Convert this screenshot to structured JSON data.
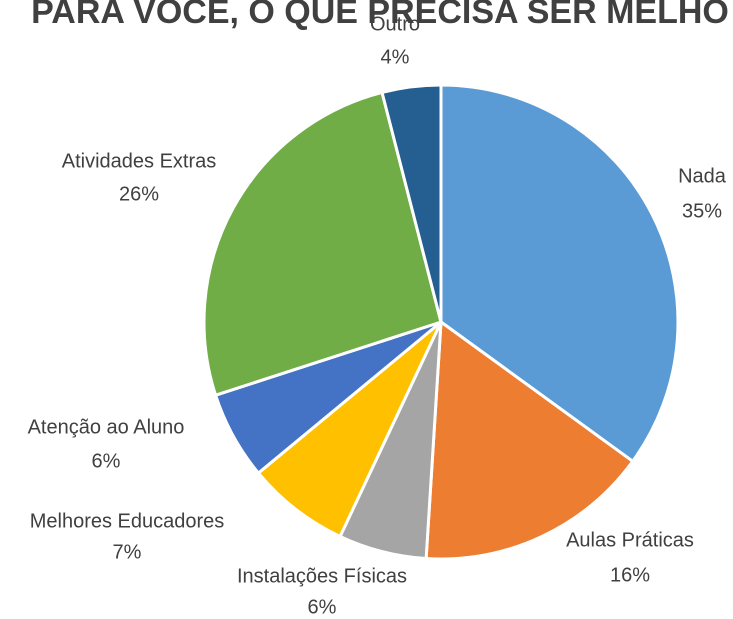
{
  "chart_data": {
    "type": "pie",
    "title": "PARA VOCÊ, O QUE PRECISA SER MELHO",
    "categories": [
      "Nada",
      "Aulas Práticas",
      "Instalações Físicas",
      "Melhores Educadores",
      "Atenção ao Aluno",
      "Atividades Extras",
      "Outro"
    ],
    "values": [
      35,
      16,
      6,
      7,
      6,
      26,
      4
    ],
    "value_labels": [
      "35%",
      "16%",
      "6%",
      "7%",
      "6%",
      "26%",
      "4%"
    ],
    "colors": [
      "#5b9bd5",
      "#ed7d31",
      "#a5a5a5",
      "#ffc000",
      "#4472c4",
      "#70ad47",
      "#255e91"
    ]
  }
}
